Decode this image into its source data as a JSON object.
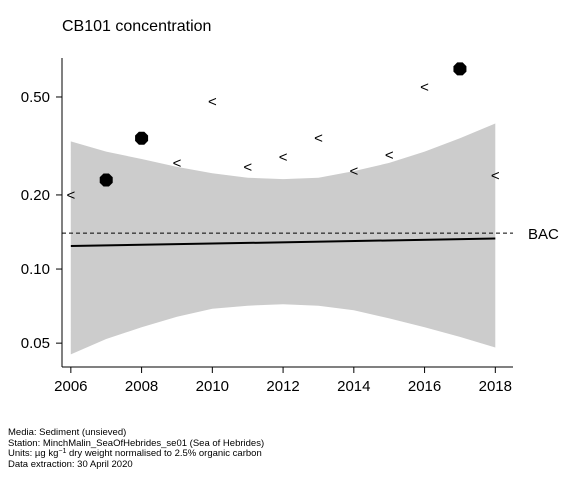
{
  "chart_data": {
    "type": "scatter",
    "title": "CB101 concentration",
    "y_scale": "log",
    "xlim": [
      2005.75,
      2018.5
    ],
    "ylim_log": [
      0.04,
      0.72
    ],
    "x_ticks": [
      2006,
      2008,
      2010,
      2012,
      2014,
      2016,
      2018
    ],
    "x_tick_labels": [
      "2006",
      "2008",
      "2010",
      "2012",
      "2014",
      "2016",
      "2018"
    ],
    "y_ticks": [
      0.05,
      0.1,
      0.2,
      0.5
    ],
    "y_tick_labels": [
      "0.05",
      "0.10",
      "0.20",
      "0.50"
    ],
    "points": [
      {
        "x": 2006,
        "y": 0.2,
        "censored": true
      },
      {
        "x": 2007,
        "y": 0.23,
        "censored": false
      },
      {
        "x": 2008,
        "y": 0.34,
        "censored": false
      },
      {
        "x": 2009,
        "y": 0.27,
        "censored": true
      },
      {
        "x": 2010,
        "y": 0.48,
        "censored": true
      },
      {
        "x": 2011,
        "y": 0.26,
        "censored": true
      },
      {
        "x": 2012,
        "y": 0.285,
        "censored": true
      },
      {
        "x": 2013,
        "y": 0.34,
        "censored": true
      },
      {
        "x": 2014,
        "y": 0.25,
        "censored": true
      },
      {
        "x": 2015,
        "y": 0.29,
        "censored": true
      },
      {
        "x": 2016,
        "y": 0.55,
        "censored": true
      },
      {
        "x": 2017,
        "y": 0.65,
        "censored": false
      },
      {
        "x": 2018,
        "y": 0.24,
        "censored": true
      }
    ],
    "trend": {
      "x": [
        2006,
        2018
      ],
      "y": [
        0.124,
        0.133
      ]
    },
    "confidence_band": {
      "x": [
        2006,
        2007,
        2008,
        2009,
        2010,
        2011,
        2012,
        2013,
        2014,
        2015,
        2016,
        2017,
        2018
      ],
      "upper": [
        0.33,
        0.3,
        0.28,
        0.26,
        0.245,
        0.235,
        0.232,
        0.235,
        0.25,
        0.27,
        0.3,
        0.34,
        0.39
      ],
      "lower": [
        0.045,
        0.052,
        0.058,
        0.064,
        0.069,
        0.071,
        0.072,
        0.071,
        0.068,
        0.063,
        0.058,
        0.053,
        0.048
      ]
    },
    "reference_line": {
      "label": "BAC",
      "value": 0.14
    },
    "colors": {
      "band": "#cccccc",
      "line": "#000000",
      "points": "#000000"
    }
  },
  "footer": {
    "media": "Media: Sediment (unsieved)",
    "station": "Station: MinchMalin_SeaOfHebrides_se01 (Sea of Hebrides)",
    "units_prefix": "Units:  µg kg",
    "units_exp": "−1",
    "units_suffix": " dry weight normalised to 2.5% organic carbon",
    "extraction": "Data extraction: 30 April 2020"
  }
}
